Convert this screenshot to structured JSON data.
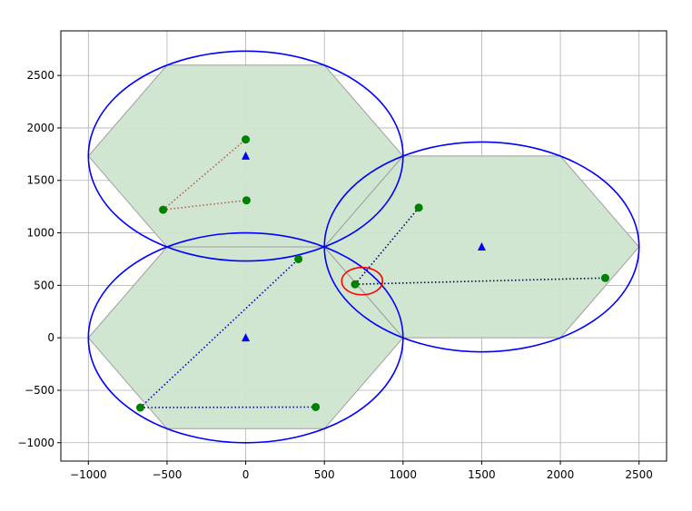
{
  "chart_data": {
    "type": "scatter",
    "title": "",
    "xlabel": "",
    "ylabel": "",
    "xlim": [
      -1175,
      2675
    ],
    "ylim": [
      -1175,
      2925
    ],
    "xticks": [
      -1000,
      -500,
      0,
      500,
      1000,
      1500,
      2000,
      2500
    ],
    "yticks": [
      -1000,
      -500,
      0,
      500,
      1000,
      1500,
      2000,
      2500
    ],
    "grid": true,
    "colors": {
      "hex_fill": "#cde5cd",
      "hex_edge": "#9e9e9e",
      "circle": "#0000ff",
      "highlight_circle": "#ff0000",
      "points": "#008000",
      "centers": "#0000ff",
      "link_blue": "#0000cc",
      "link_brown": "#b5604a",
      "link_navy": "#000066"
    },
    "hexagons": [
      {
        "center": [
          0,
          0
        ],
        "radius": 1000
      },
      {
        "center": [
          0,
          1732
        ],
        "radius": 1000
      },
      {
        "center": [
          1500,
          866
        ],
        "radius": 1000
      }
    ],
    "coverage_circles": [
      {
        "center": [
          0,
          0
        ],
        "radius": 1000
      },
      {
        "center": [
          0,
          1732
        ],
        "radius": 1000
      },
      {
        "center": [
          1500,
          866
        ],
        "radius": 1000
      }
    ],
    "highlight_circle": {
      "center": [
        740,
        540
      ],
      "radius": 130
    },
    "base_stations": [
      [
        0,
        0
      ],
      [
        0,
        1732
      ],
      [
        1500,
        866
      ]
    ],
    "users": [
      [
        -670,
        -665
      ],
      [
        445,
        -660
      ],
      [
        335,
        750
      ],
      [
        -525,
        1220
      ],
      [
        0,
        1890
      ],
      [
        5,
        1310
      ],
      [
        695,
        510
      ],
      [
        1100,
        1240
      ],
      [
        2285,
        570
      ]
    ],
    "links": [
      {
        "from": [
          -670,
          -665
        ],
        "to": [
          445,
          -660
        ],
        "color": "link_blue"
      },
      {
        "from": [
          -670,
          -665
        ],
        "to": [
          335,
          750
        ],
        "color": "link_blue"
      },
      {
        "from": [
          -525,
          1220
        ],
        "to": [
          0,
          1890
        ],
        "color": "link_brown"
      },
      {
        "from": [
          -525,
          1220
        ],
        "to": [
          5,
          1310
        ],
        "color": "link_brown"
      },
      {
        "from": [
          695,
          510
        ],
        "to": [
          1100,
          1240
        ],
        "color": "link_navy"
      },
      {
        "from": [
          695,
          510
        ],
        "to": [
          2285,
          570
        ],
        "color": "link_navy"
      }
    ]
  }
}
